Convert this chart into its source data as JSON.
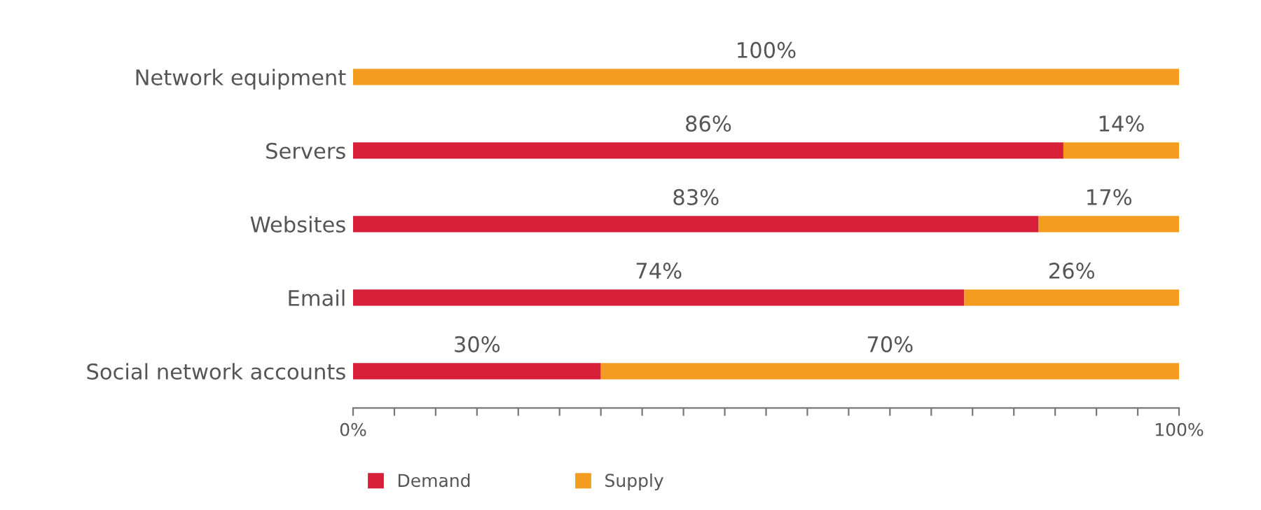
{
  "chart_data": {
    "type": "bar",
    "orientation": "horizontal",
    "stacked": true,
    "categories": [
      "Network equipment",
      "Servers",
      "Websites",
      "Email",
      "Social network accounts"
    ],
    "series": [
      {
        "name": "Demand",
        "color": "#d71f3a",
        "values": [
          0,
          86,
          83,
          74,
          30
        ],
        "value_labels": [
          null,
          "86%",
          "83%",
          "74%",
          "30%"
        ]
      },
      {
        "name": "Supply",
        "color": "#f39c1f",
        "values": [
          100,
          14,
          17,
          26,
          70
        ],
        "value_labels": [
          "100%",
          "14%",
          "17%",
          "26%",
          "70%"
        ]
      }
    ],
    "xlim": [
      0,
      100
    ],
    "xticks": [
      {
        "value": 0,
        "label": "0%"
      },
      {
        "value": 5,
        "label": null
      },
      {
        "value": 10,
        "label": null
      },
      {
        "value": 15,
        "label": null
      },
      {
        "value": 20,
        "label": null
      },
      {
        "value": 25,
        "label": null
      },
      {
        "value": 30,
        "label": null
      },
      {
        "value": 35,
        "label": null
      },
      {
        "value": 40,
        "label": null
      },
      {
        "value": 45,
        "label": null
      },
      {
        "value": 50,
        "label": null
      },
      {
        "value": 55,
        "label": null
      },
      {
        "value": 60,
        "label": null
      },
      {
        "value": 65,
        "label": null
      },
      {
        "value": 70,
        "label": null
      },
      {
        "value": 75,
        "label": null
      },
      {
        "value": 80,
        "label": null
      },
      {
        "value": 85,
        "label": null
      },
      {
        "value": 90,
        "label": null
      },
      {
        "value": 95,
        "label": null
      },
      {
        "value": 100,
        "label": "100%"
      }
    ],
    "grid": false,
    "legend": "bottom left"
  }
}
